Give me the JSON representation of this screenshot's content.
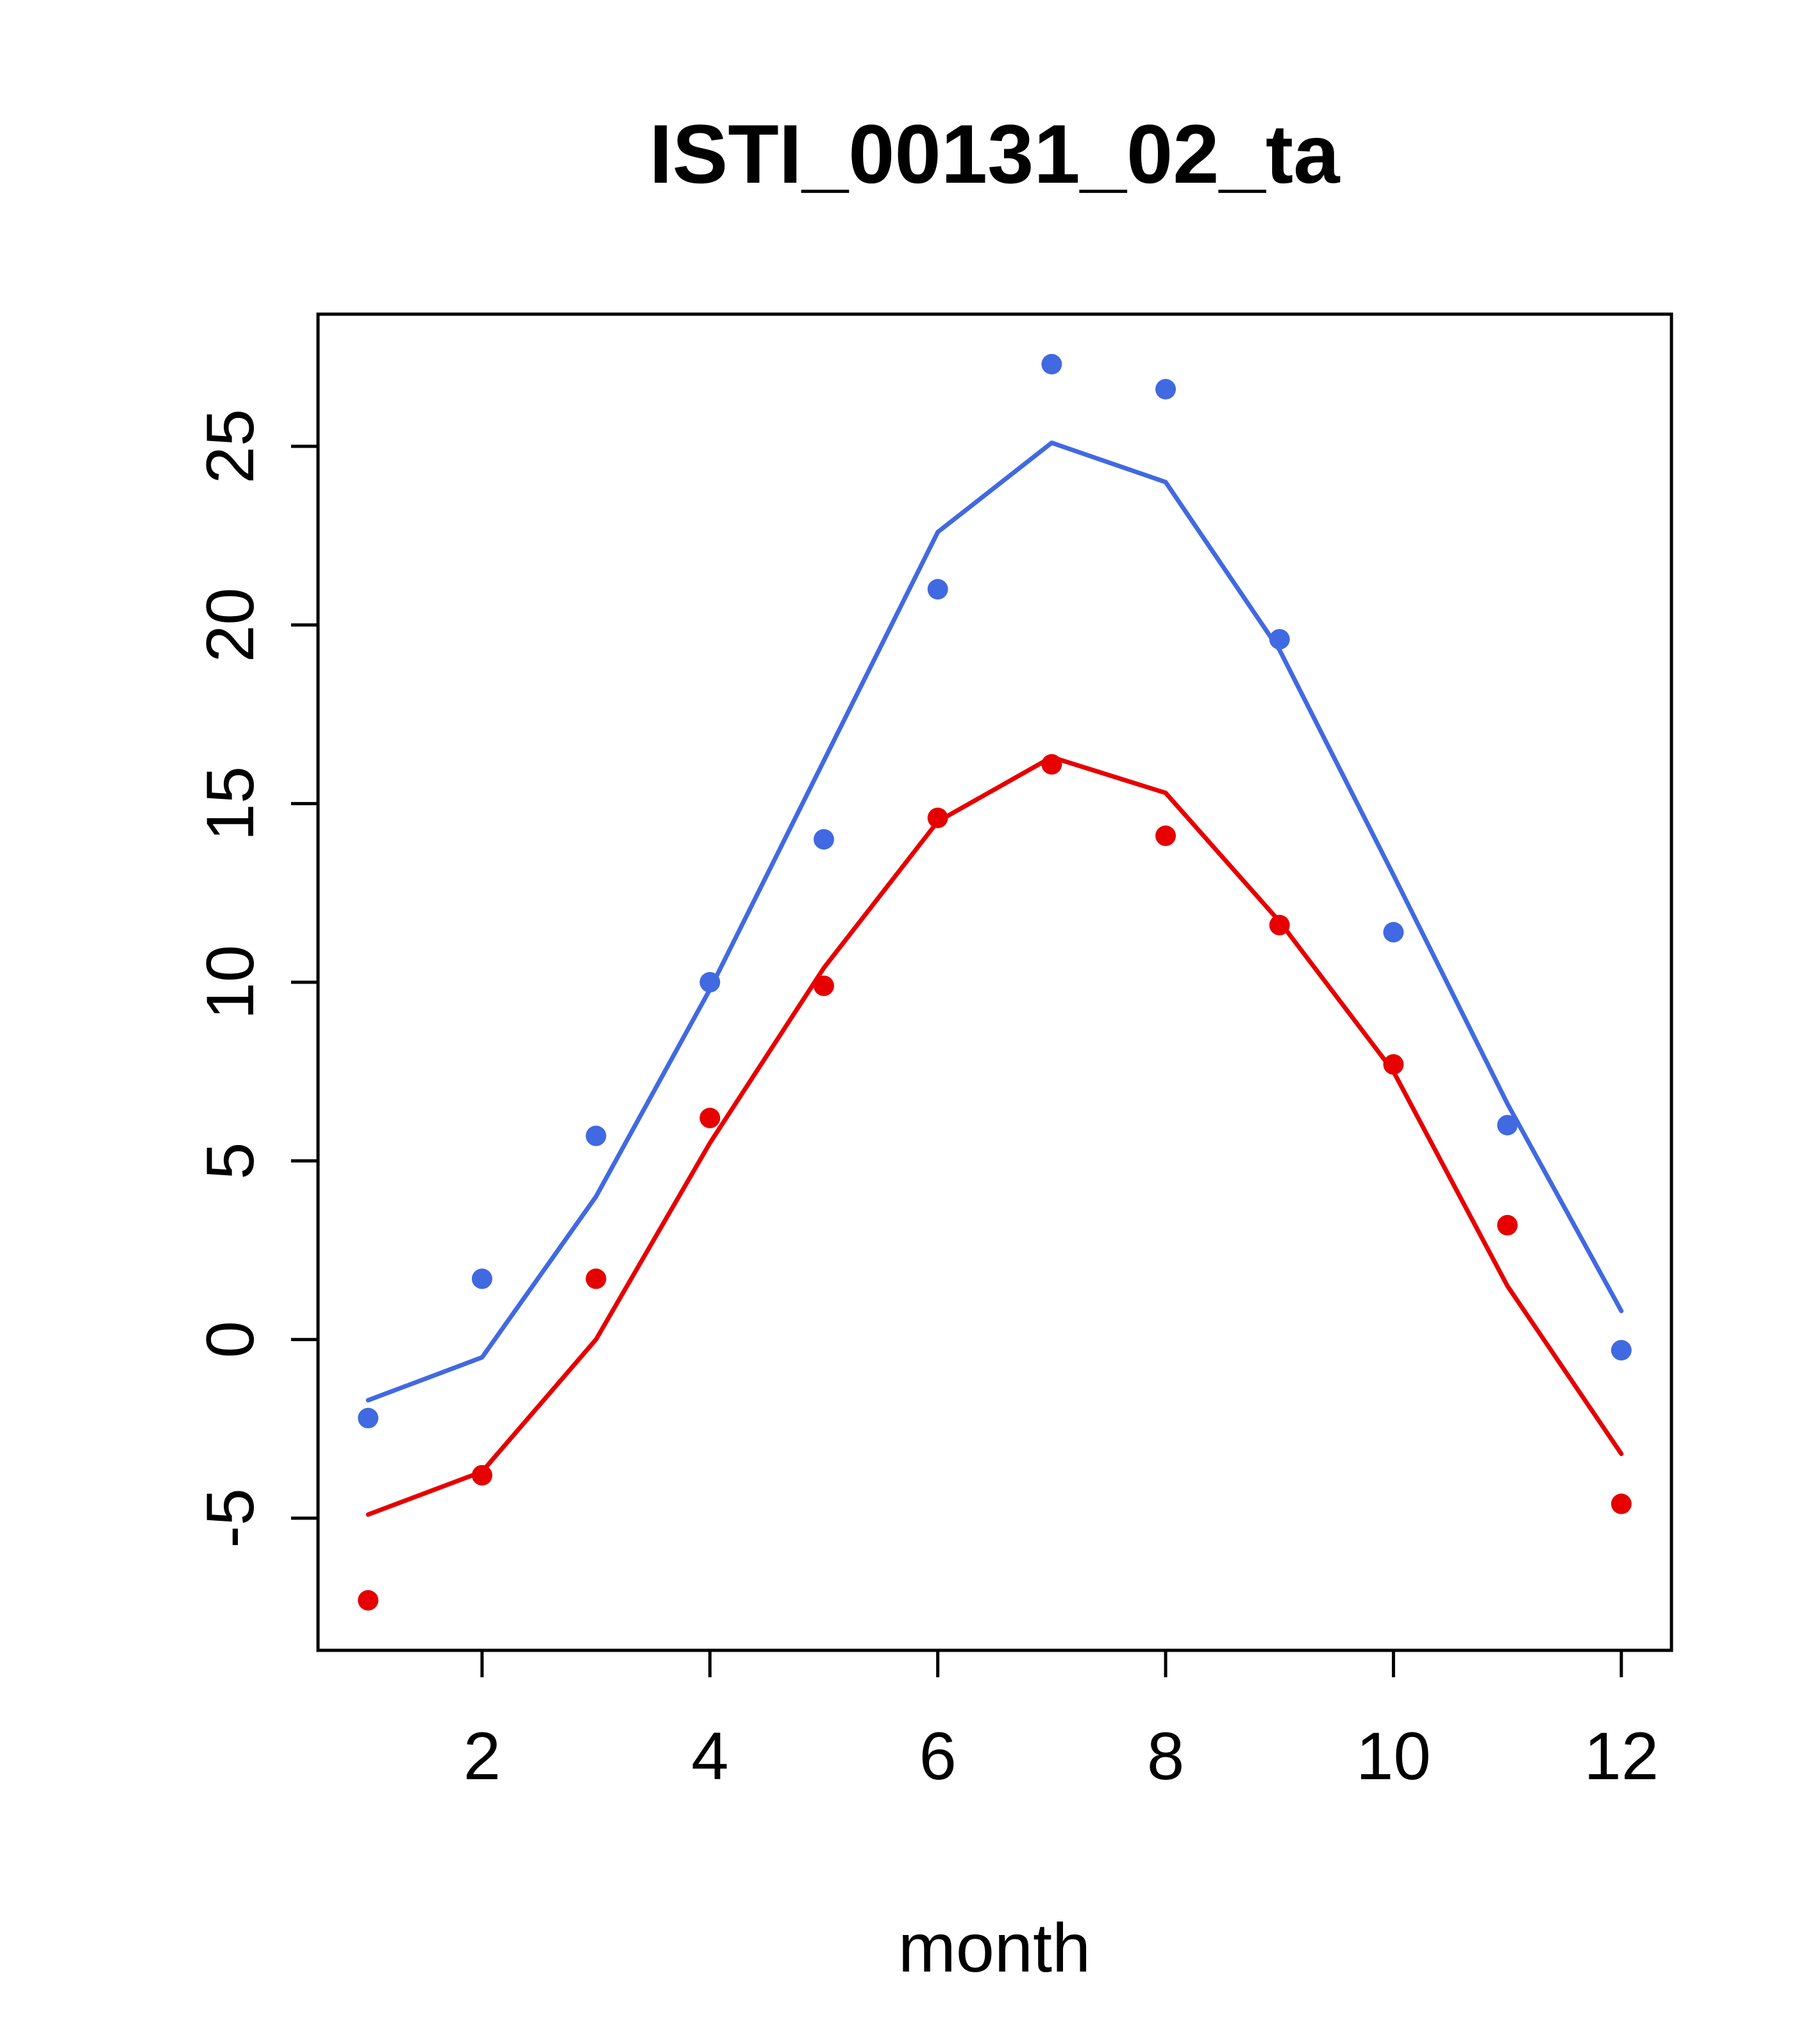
{
  "chart_data": {
    "type": "line",
    "title": "ISTI_00131_02_ta",
    "xlabel": "month",
    "ylabel": "",
    "x": [
      1,
      2,
      3,
      4,
      5,
      6,
      7,
      8,
      9,
      10,
      11,
      12
    ],
    "xlim": [
      0.56,
      12.44
    ],
    "ylim": [
      -8.7,
      28.7
    ],
    "xticks": [
      2,
      4,
      6,
      8,
      10,
      12
    ],
    "yticks": [
      -5,
      0,
      5,
      10,
      15,
      20,
      25
    ],
    "grid": false,
    "legend_position": "none",
    "colors": {
      "blue_series": "#4169E1",
      "red_series": "#E60000",
      "axis": "#000000"
    },
    "series": [
      {
        "name": "blue-points",
        "style": "points",
        "color": "#4169E1",
        "values": [
          -2.2,
          1.7,
          5.7,
          10.0,
          14.0,
          21.0,
          27.3,
          26.6,
          19.6,
          11.4,
          6.0,
          -0.3
        ]
      },
      {
        "name": "blue-line",
        "style": "line",
        "color": "#4169E1",
        "values": [
          -1.7,
          -0.5,
          4.0,
          9.8,
          16.2,
          22.6,
          25.1,
          24.0,
          19.3,
          13.0,
          6.6,
          0.8
        ]
      },
      {
        "name": "red-points",
        "style": "points",
        "color": "#E60000",
        "values": [
          -7.3,
          -3.8,
          1.7,
          6.2,
          9.9,
          14.6,
          16.1,
          14.1,
          11.6,
          7.7,
          3.2,
          -4.6
        ]
      },
      {
        "name": "red-line",
        "style": "line",
        "color": "#E60000",
        "values": [
          -4.9,
          -3.7,
          0.0,
          5.5,
          10.4,
          14.5,
          16.3,
          15.3,
          11.7,
          7.5,
          1.5,
          -3.2
        ]
      }
    ]
  }
}
